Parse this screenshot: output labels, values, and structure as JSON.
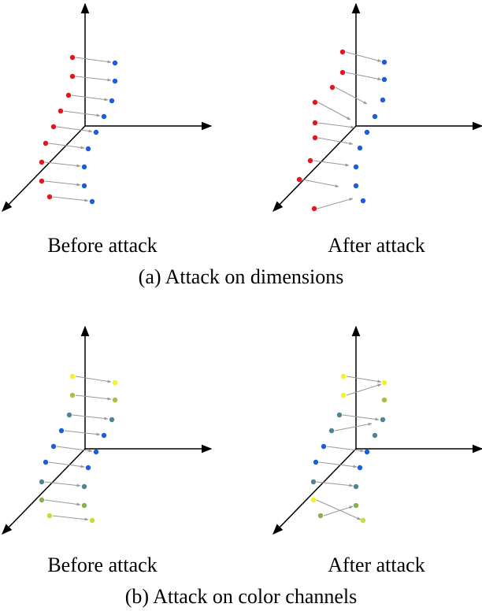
{
  "panels": [
    {
      "before_label": "Before attack",
      "after_label": "After attack",
      "caption": "(a) Attack on dimensions"
    },
    {
      "before_label": "Before attack",
      "after_label": "After attack",
      "caption": "(b) Attack on color channels"
    }
  ]
}
